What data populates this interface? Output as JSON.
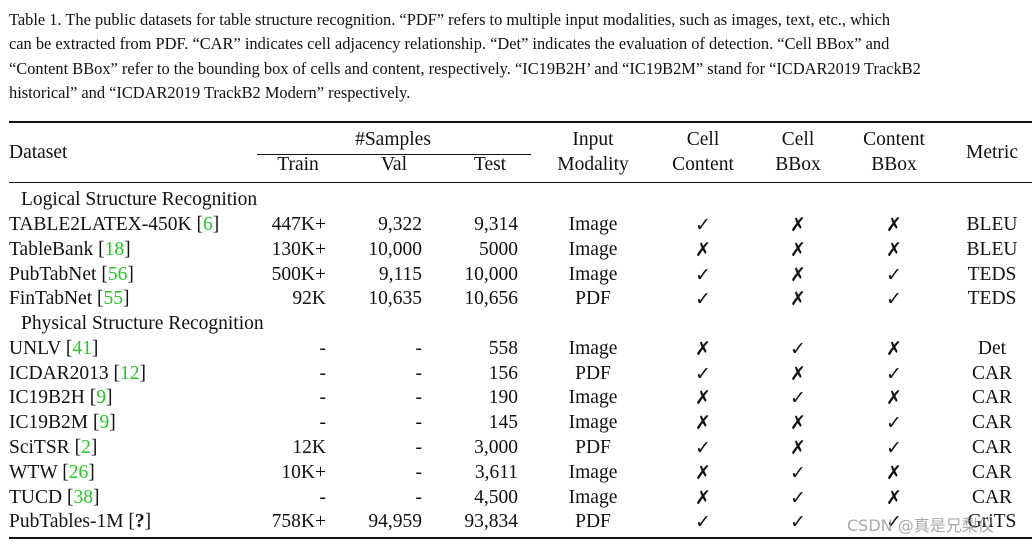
{
  "caption": {
    "lines": [
      "Table 1. The public datasets for table structure recognition. “PDF” refers to multiple input modalities, such as images, text, etc., which",
      "can be extracted from PDF. “CAR” indicates cell adjacency relationship. “Det” indicates the evaluation of detection. “Cell BBox” and",
      "“Content BBox” refer to the bounding box of cells and content, respectively. “IC19B2H’ and “IC19B2M” stand for “ICDAR2019 TrackB2",
      "historical” and “ICDAR2019 TrackB2 Modern” respectively."
    ]
  },
  "table": {
    "headers": {
      "dataset": "Dataset",
      "samples_group": "#Samples",
      "train": "Train",
      "val": "Val",
      "test": "Test",
      "input_modality_1": "Input",
      "input_modality_2": "Modality",
      "cell_content_1": "Cell",
      "cell_content_2": "Content",
      "cell_bbox_1": "Cell",
      "cell_bbox_2": "BBox",
      "content_bbox_1": "Content",
      "content_bbox_2": "BBox",
      "metric": "Metric"
    },
    "marks": {
      "yes": "✓",
      "no": "✗"
    },
    "sections": [
      {
        "title": "Logical Structure Recognition"
      },
      {
        "title": "Physical Structure Recognition"
      }
    ],
    "rows": [
      {
        "name": "TABLE2LATEX-450K",
        "ref": "6",
        "train": "447K+",
        "val": "9,322",
        "test": "9,314",
        "modality": "Image",
        "cell_content": "✓",
        "cell_bbox": "✗",
        "content_bbox": "✗",
        "metric": "BLEU"
      },
      {
        "name": "TableBank",
        "ref": "18",
        "train": "130K+",
        "val": "10,000",
        "test": "5000",
        "modality": "Image",
        "cell_content": "✗",
        "cell_bbox": "✗",
        "content_bbox": "✗",
        "metric": "BLEU"
      },
      {
        "name": "PubTabNet",
        "ref": "56",
        "train": "500K+",
        "val": "9,115",
        "test": "10,000",
        "modality": "Image",
        "cell_content": "✓",
        "cell_bbox": "✗",
        "content_bbox": "✓",
        "metric": "TEDS"
      },
      {
        "name": "FinTabNet",
        "ref": "55",
        "train": "92K",
        "val": "10,635",
        "test": "10,656",
        "modality": "PDF",
        "cell_content": "✓",
        "cell_bbox": "✗",
        "content_bbox": "✓",
        "metric": "TEDS"
      },
      {
        "name": "UNLV",
        "ref": "41",
        "train": "-",
        "val": "-",
        "test": "558",
        "modality": "Image",
        "cell_content": "✗",
        "cell_bbox": "✓",
        "content_bbox": "✗",
        "metric": "Det"
      },
      {
        "name": "ICDAR2013",
        "ref": "12",
        "train": "-",
        "val": "-",
        "test": "156",
        "modality": "PDF",
        "cell_content": "✓",
        "cell_bbox": "✗",
        "content_bbox": "✓",
        "metric": "CAR"
      },
      {
        "name": "IC19B2H",
        "ref": "9",
        "train": "-",
        "val": "-",
        "test": "190",
        "modality": "Image",
        "cell_content": "✗",
        "cell_bbox": "✓",
        "content_bbox": "✗",
        "metric": "CAR"
      },
      {
        "name": "IC19B2M",
        "ref": "9",
        "train": "-",
        "val": "-",
        "test": "145",
        "modality": "Image",
        "cell_content": "✗",
        "cell_bbox": "✗",
        "content_bbox": "✓",
        "metric": "CAR"
      },
      {
        "name": "SciTSR",
        "ref": "2",
        "train": "12K",
        "val": "-",
        "test": "3,000",
        "modality": "PDF",
        "cell_content": "✓",
        "cell_bbox": "✗",
        "content_bbox": "✓",
        "metric": "CAR"
      },
      {
        "name": "WTW",
        "ref": "26",
        "train": "10K+",
        "val": "-",
        "test": "3,611",
        "modality": "Image",
        "cell_content": "✗",
        "cell_bbox": "✓",
        "content_bbox": "✗",
        "metric": "CAR"
      },
      {
        "name": "TUCD",
        "ref": "38",
        "train": "-",
        "val": "-",
        "test": "4,500",
        "modality": "Image",
        "cell_content": "✗",
        "cell_bbox": "✓",
        "content_bbox": "✗",
        "metric": "CAR"
      },
      {
        "name": "PubTables-1M",
        "ref": "?",
        "train": "758K+",
        "val": "94,959",
        "test": "93,834",
        "modality": "PDF",
        "cell_content": "✓",
        "cell_bbox": "✓",
        "content_bbox": "✓",
        "metric": "GriTS"
      }
    ]
  },
  "watermark": "CSDN @真是兄梨仪",
  "colors": {
    "citation": "#22cc22",
    "text": "#111111"
  }
}
